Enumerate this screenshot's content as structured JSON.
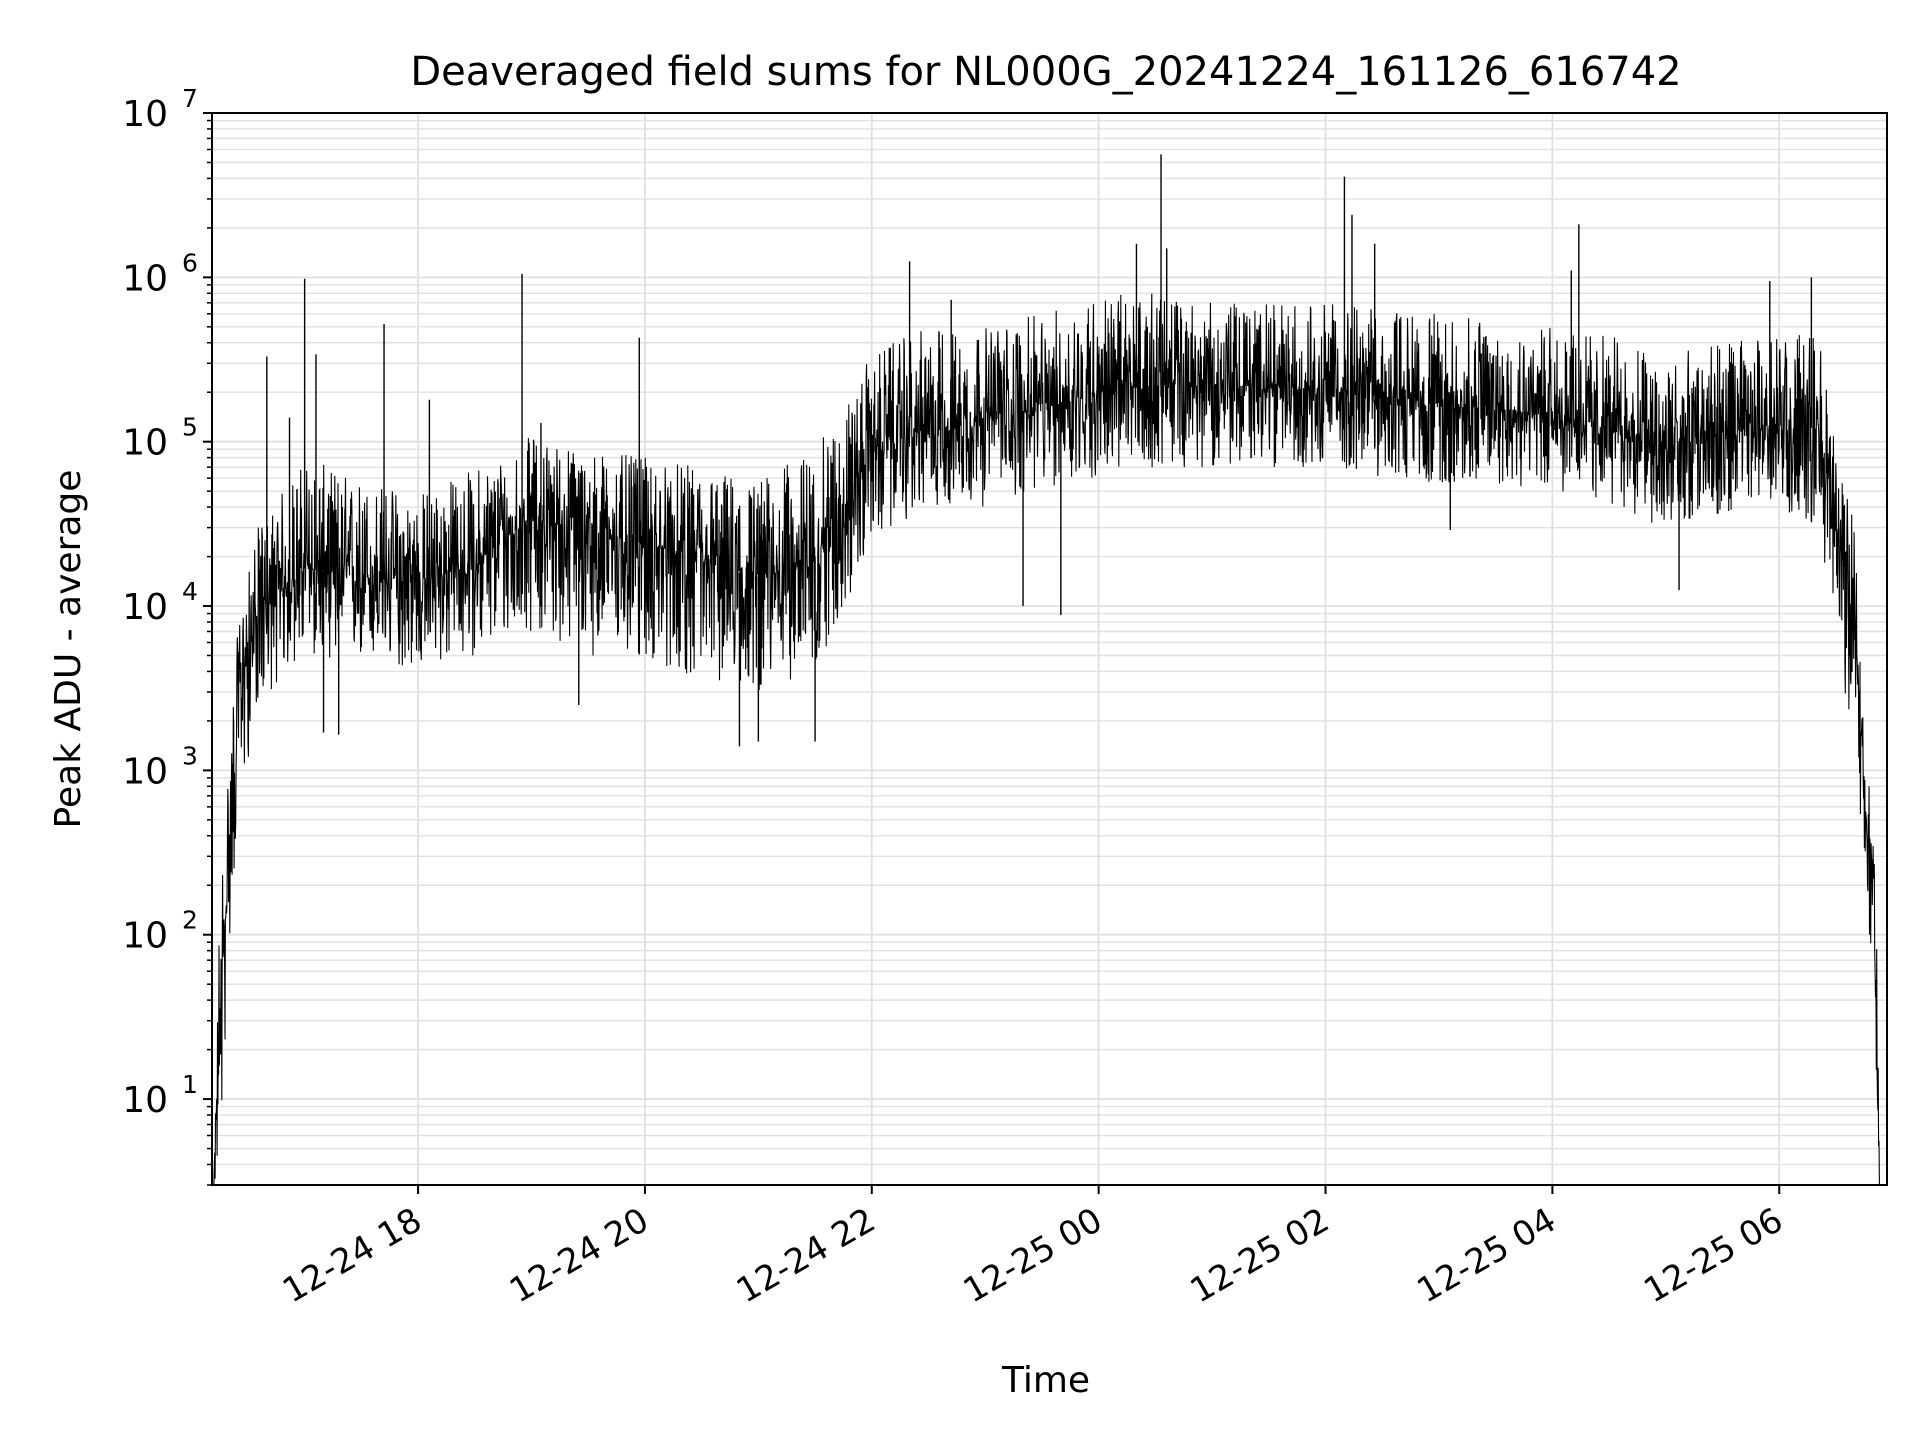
{
  "chart_data": {
    "type": "line",
    "title": "Deaveraged field sums for NL000G_20241224_161126_616742",
    "xlabel": "Time",
    "ylabel": "Peak ADU - average",
    "xlim": [
      "2024-12-24 16:11",
      "2024-12-25 06:57"
    ],
    "ylim": [
      3,
      10000000
    ],
    "yscale": "log",
    "grid": {
      "major": true,
      "minor_y": true
    },
    "line_color": "#000000",
    "grid_color": "#e0e0e0",
    "x_ticks": [
      {
        "t": "2024-12-24 18:00",
        "label": "12-24 18"
      },
      {
        "t": "2024-12-24 20:00",
        "label": "12-24 20"
      },
      {
        "t": "2024-12-24 22:00",
        "label": "12-24 22"
      },
      {
        "t": "2024-12-25 00:00",
        "label": "12-25 00"
      },
      {
        "t": "2024-12-25 02:00",
        "label": "12-25 02"
      },
      {
        "t": "2024-12-25 04:00",
        "label": "12-25 04"
      },
      {
        "t": "2024-12-25 06:00",
        "label": "12-25 06"
      }
    ],
    "y_ticks": [
      {
        "v": 10,
        "base": "10",
        "exp": "1"
      },
      {
        "v": 100,
        "base": "10",
        "exp": "2"
      },
      {
        "v": 1000,
        "base": "10",
        "exp": "3"
      },
      {
        "v": 10000,
        "base": "10",
        "exp": "4"
      },
      {
        "v": 100000,
        "base": "10",
        "exp": "5"
      },
      {
        "v": 1000000,
        "base": "10",
        "exp": "6"
      },
      {
        "v": 10000000,
        "base": "10",
        "exp": "7"
      }
    ],
    "series": [
      {
        "envelope": [
          {
            "t": "2024-12-24 16:12",
            "low": 3,
            "mid": 3,
            "high": 3
          },
          {
            "t": "2024-12-24 16:15",
            "low": 3,
            "mid": 30,
            "high": 170
          },
          {
            "t": "2024-12-24 16:20",
            "low": 80,
            "mid": 300,
            "high": 1500
          },
          {
            "t": "2024-12-24 16:25",
            "low": 500,
            "mid": 3000,
            "high": 8000
          },
          {
            "t": "2024-12-24 16:35",
            "low": 2500,
            "mid": 9000,
            "high": 30000
          },
          {
            "t": "2024-12-24 17:00",
            "low": 5000,
            "mid": 17000,
            "high": 80000
          },
          {
            "t": "2024-12-24 17:30",
            "low": 4500,
            "mid": 15000,
            "high": 60000
          },
          {
            "t": "2024-12-24 18:00",
            "low": 4000,
            "mid": 14000,
            "high": 50000
          },
          {
            "t": "2024-12-24 18:30",
            "low": 5000,
            "mid": 18000,
            "high": 70000
          },
          {
            "t": "2024-12-24 19:00",
            "low": 7000,
            "mid": 35000,
            "high": 110000
          },
          {
            "t": "2024-12-24 19:30",
            "low": 5000,
            "mid": 28000,
            "high": 90000
          },
          {
            "t": "2024-12-24 20:00",
            "low": 4500,
            "mid": 24000,
            "high": 80000
          },
          {
            "t": "2024-12-24 20:30",
            "low": 3500,
            "mid": 18000,
            "high": 70000
          },
          {
            "t": "2024-12-24 21:00",
            "low": 3000,
            "mid": 15000,
            "high": 60000
          },
          {
            "t": "2024-12-24 21:30",
            "low": 4000,
            "mid": 20000,
            "high": 90000
          },
          {
            "t": "2024-12-24 21:50",
            "low": 12000,
            "mid": 50000,
            "high": 200000
          },
          {
            "t": "2024-12-24 22:00",
            "low": 25000,
            "mid": 90000,
            "high": 350000
          },
          {
            "t": "2024-12-24 22:30",
            "low": 40000,
            "mid": 120000,
            "high": 500000
          },
          {
            "t": "2024-12-24 23:00",
            "low": 40000,
            "mid": 140000,
            "high": 500000
          },
          {
            "t": "2024-12-24 23:30",
            "low": 50000,
            "mid": 160000,
            "high": 600000
          },
          {
            "t": "2024-12-25 00:00",
            "low": 60000,
            "mid": 200000,
            "high": 800000
          },
          {
            "t": "2024-12-25 00:30",
            "low": 70000,
            "mid": 220000,
            "high": 800000
          },
          {
            "t": "2024-12-25 01:00",
            "low": 70000,
            "mid": 220000,
            "high": 700000
          },
          {
            "t": "2024-12-25 01:30",
            "low": 70000,
            "mid": 210000,
            "high": 700000
          },
          {
            "t": "2024-12-25 02:00",
            "low": 70000,
            "mid": 210000,
            "high": 700000
          },
          {
            "t": "2024-12-25 02:30",
            "low": 60000,
            "mid": 190000,
            "high": 650000
          },
          {
            "t": "2024-12-25 03:00",
            "low": 55000,
            "mid": 170000,
            "high": 600000
          },
          {
            "t": "2024-12-25 03:30",
            "low": 55000,
            "mid": 160000,
            "high": 550000
          },
          {
            "t": "2024-12-25 04:00",
            "low": 50000,
            "mid": 150000,
            "high": 500000
          },
          {
            "t": "2024-12-25 04:30",
            "low": 40000,
            "mid": 120000,
            "high": 450000
          },
          {
            "t": "2024-12-25 05:00",
            "low": 30000,
            "mid": 90000,
            "high": 350000
          },
          {
            "t": "2024-12-25 05:30",
            "low": 35000,
            "mid": 110000,
            "high": 400000
          },
          {
            "t": "2024-12-25 06:00",
            "low": 40000,
            "mid": 130000,
            "high": 450000
          },
          {
            "t": "2024-12-25 06:20",
            "low": 30000,
            "mid": 120000,
            "high": 500000
          },
          {
            "t": "2024-12-25 06:30",
            "low": 8000,
            "mid": 30000,
            "high": 90000
          },
          {
            "t": "2024-12-25 06:40",
            "low": 1000,
            "mid": 8000,
            "high": 30000
          },
          {
            "t": "2024-12-25 06:45",
            "low": 300,
            "mid": 900,
            "high": 2000
          },
          {
            "t": "2024-12-25 06:50",
            "low": 40,
            "mid": 150,
            "high": 400
          },
          {
            "t": "2024-12-25 06:53",
            "low": 3,
            "mid": 3,
            "high": 200
          }
        ],
        "spikes": [
          {
            "t": "2024-12-24 16:40",
            "v": 330000
          },
          {
            "t": "2024-12-24 16:52",
            "v": 140000
          },
          {
            "t": "2024-12-24 17:00",
            "v": 980000
          },
          {
            "t": "2024-12-24 17:06",
            "v": 340000
          },
          {
            "t": "2024-12-24 17:42",
            "v": 520000
          },
          {
            "t": "2024-12-24 18:06",
            "v": 180000
          },
          {
            "t": "2024-12-24 18:55",
            "v": 1050000
          },
          {
            "t": "2024-12-24 19:05",
            "v": 130000
          },
          {
            "t": "2024-12-24 19:57",
            "v": 430000
          },
          {
            "t": "2024-12-24 22:20",
            "v": 1250000
          },
          {
            "t": "2024-12-24 22:42",
            "v": 730000
          },
          {
            "t": "2024-12-25 00:20",
            "v": 1600000
          },
          {
            "t": "2024-12-25 00:33",
            "v": 5600000
          },
          {
            "t": "2024-12-25 00:36",
            "v": 1500000
          },
          {
            "t": "2024-12-25 02:10",
            "v": 4100000
          },
          {
            "t": "2024-12-25 02:14",
            "v": 2400000
          },
          {
            "t": "2024-12-25 02:26",
            "v": 1600000
          },
          {
            "t": "2024-12-25 04:14",
            "v": 2100000
          },
          {
            "t": "2024-12-25 04:10",
            "v": 1100000
          },
          {
            "t": "2024-12-25 05:55",
            "v": 950000
          },
          {
            "t": "2024-12-25 06:17",
            "v": 1000000
          }
        ],
        "dips": [
          {
            "t": "2024-12-24 17:10",
            "v": 1700
          },
          {
            "t": "2024-12-24 17:18",
            "v": 1650
          },
          {
            "t": "2024-12-24 19:25",
            "v": 2500
          },
          {
            "t": "2024-12-24 20:50",
            "v": 1400
          },
          {
            "t": "2024-12-24 21:00",
            "v": 1500
          },
          {
            "t": "2024-12-24 21:30",
            "v": 1500
          },
          {
            "t": "2024-12-24 23:20",
            "v": 10000
          },
          {
            "t": "2024-12-24 23:40",
            "v": 8800
          },
          {
            "t": "2024-12-25 03:06",
            "v": 29000
          },
          {
            "t": "2024-12-25 05:07",
            "v": 12500
          },
          {
            "t": "2024-12-25 06:40",
            "v": 6200
          }
        ]
      }
    ]
  }
}
